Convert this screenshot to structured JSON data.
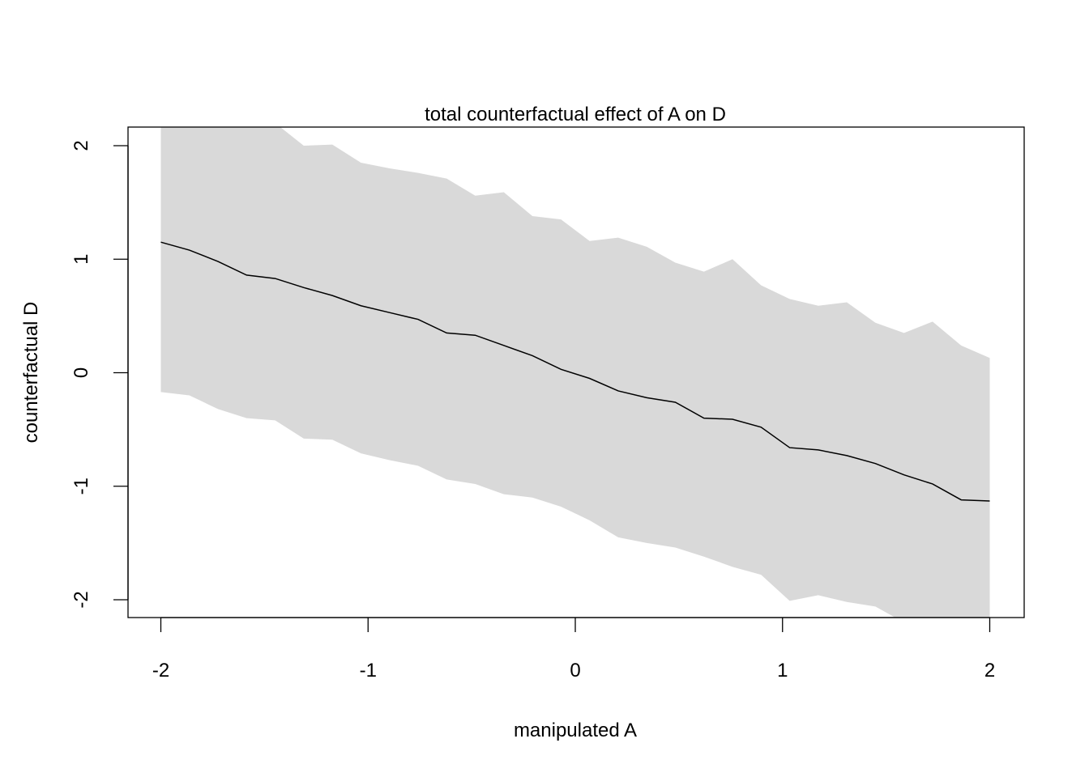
{
  "chart_data": {
    "type": "line",
    "title": "total counterfactual effect of A on D",
    "xlabel": "manipulated A",
    "ylabel": "counterfactual D",
    "xlim": [
      -2.16,
      2.16
    ],
    "ylim": [
      -2.16,
      2.16
    ],
    "xticks": [
      -2,
      -1,
      0,
      1,
      2
    ],
    "yticks": [
      -2,
      -1,
      0,
      1,
      2
    ],
    "grid": false,
    "colors": {
      "line": "#000000",
      "band": "#d9d9d9"
    },
    "x_range": [
      -2,
      2
    ],
    "n_points": 30,
    "mean": [
      1.15,
      1.08,
      0.98,
      0.86,
      0.83,
      0.75,
      0.68,
      0.59,
      0.53,
      0.47,
      0.35,
      0.33,
      0.24,
      0.15,
      0.03,
      -0.05,
      -0.16,
      -0.22,
      -0.26,
      -0.4,
      -0.41,
      -0.48,
      -0.66,
      -0.68,
      -0.73,
      -0.8,
      -0.9,
      -0.98,
      -1.12,
      -1.13
    ],
    "upper": [
      2.5,
      2.4,
      2.35,
      2.3,
      2.2,
      2.0,
      2.01,
      1.85,
      1.8,
      1.76,
      1.71,
      1.56,
      1.59,
      1.38,
      1.35,
      1.16,
      1.19,
      1.11,
      0.97,
      0.89,
      1.0,
      0.77,
      0.65,
      0.59,
      0.62,
      0.44,
      0.35,
      0.45,
      0.24,
      0.13
    ],
    "lower": [
      -0.17,
      -0.2,
      -0.32,
      -0.4,
      -0.42,
      -0.58,
      -0.59,
      -0.71,
      -0.77,
      -0.82,
      -0.94,
      -0.98,
      -1.07,
      -1.1,
      -1.18,
      -1.3,
      -1.45,
      -1.5,
      -1.54,
      -1.62,
      -1.71,
      -1.78,
      -2.01,
      -1.96,
      -2.02,
      -2.06,
      -2.2,
      -2.3,
      -2.25,
      -2.3
    ]
  }
}
